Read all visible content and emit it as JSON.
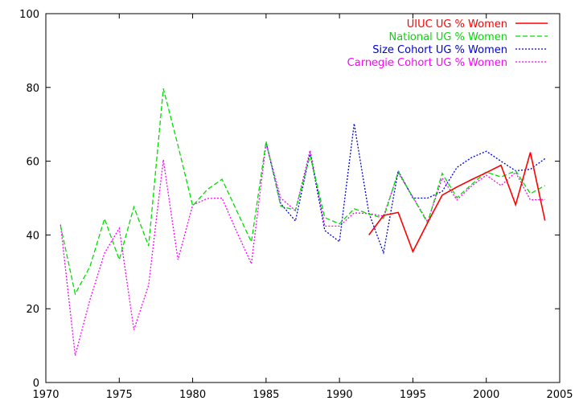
{
  "chart_data": {
    "type": "line",
    "xlim": [
      1970,
      2005
    ],
    "ylim": [
      0,
      100
    ],
    "xticks": [
      1970,
      1975,
      1980,
      1985,
      1990,
      1995,
      2000,
      2005
    ],
    "yticks": [
      0,
      20,
      40,
      60,
      80,
      100
    ],
    "grid": false,
    "legend_position": "top-right",
    "series": [
      {
        "name": "UIUC UG % Women",
        "color": "#ff0000",
        "dash": "solid",
        "x": [
          1992,
          1993,
          1994,
          1995,
          1996,
          1997,
          1998,
          1999,
          2000,
          2001,
          2002,
          2003,
          2004
        ],
        "y": [
          40,
          45.3,
          46.1,
          35.5,
          43.3,
          50.8,
          53,
          55,
          56.9,
          58.9,
          48.2,
          62.4,
          43.9
        ]
      },
      {
        "name": "National UG % Women",
        "color": "#00dd00",
        "dash": "dashed",
        "x": [
          1971,
          1972,
          1973,
          1974,
          1975,
          1976,
          1977,
          1978,
          1979,
          1980,
          1981,
          1982,
          1983,
          1984,
          1985,
          1986,
          1987,
          1988,
          1989,
          1990,
          1991,
          1992,
          1993,
          1994,
          1995,
          1996,
          1997,
          1998,
          1999,
          2000,
          2001,
          2002,
          2003,
          2004
        ],
        "y": [
          42.5,
          24,
          31.4,
          44.4,
          33.3,
          47.6,
          37,
          79.7,
          64.3,
          47.9,
          52.3,
          55.1,
          46.6,
          38.1,
          65.4,
          47.8,
          46.7,
          61.5,
          44.7,
          43,
          47.1,
          45.7,
          44.5,
          57.2,
          50.2,
          43.3,
          56.7,
          50.1,
          53.7,
          57.1,
          55.7,
          57.4,
          51.2,
          53.4
        ]
      },
      {
        "name": "Size Cohort UG % Women",
        "color": "#0000dd",
        "dash": "dotted",
        "x": [
          1985,
          1986,
          1987,
          1988,
          1989,
          1990,
          1991,
          1992,
          1993,
          1994,
          1995,
          1996,
          1997,
          1998,
          1999,
          2000,
          2001,
          2002,
          2003,
          2004
        ],
        "y": [
          65,
          48.5,
          43.8,
          62.3,
          41.2,
          38.2,
          70.2,
          46,
          35.2,
          57.4,
          50,
          50,
          51.8,
          58.3,
          61,
          62.7,
          60,
          57.4,
          57.8,
          60.7
        ]
      },
      {
        "name": "Carnegie Cohort UG % Women",
        "color": "#ff00ff",
        "dash": "dotted",
        "x": [
          1971,
          1972,
          1973,
          1974,
          1975,
          1976,
          1977,
          1978,
          1979,
          1980,
          1981,
          1982,
          1983,
          1984,
          1985,
          1986,
          1987,
          1988,
          1989,
          1990,
          1991,
          1992,
          1993,
          1994,
          1995,
          1996,
          1997,
          1998,
          1999,
          2000,
          2001,
          2002,
          2003,
          2004
        ],
        "y": [
          42.8,
          7.3,
          22.4,
          35.1,
          41.8,
          14.3,
          26.4,
          60.4,
          33.3,
          48.1,
          49.9,
          50,
          40.9,
          32.2,
          64.9,
          50,
          46.6,
          63,
          42.4,
          42.4,
          46,
          45.8,
          45.1,
          56.8,
          50.3,
          43.6,
          55.4,
          49.5,
          53.3,
          56.2,
          53.4,
          57,
          49.5,
          49.6
        ]
      }
    ]
  }
}
